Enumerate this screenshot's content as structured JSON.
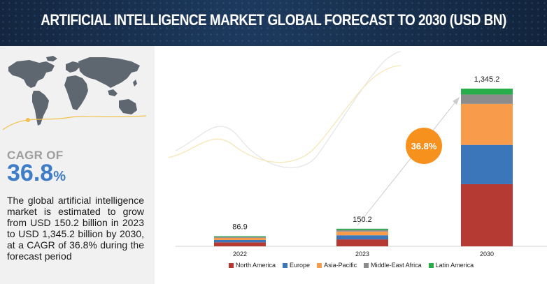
{
  "header": {
    "title": "ARTIFICIAL INTELLIGENCE MARKET GLOBAL FORECAST TO 2030 (USD BN)"
  },
  "sidebar": {
    "cagr_label": "CAGR OF",
    "cagr_value": "36.8",
    "cagr_pct": "%",
    "description": "The global artificial intelligence market is estimated to grow from USD 150.2 billion in 2023 to USD 1,345.2 billion by 2030, at a CAGR of 36.8% during the forecast period"
  },
  "cagr_bubble": "36.8%",
  "colors": {
    "North America": "#b53a33",
    "Europe": "#3b75ba",
    "Asia-Pacific": "#f89b4b",
    "Middle-East Africa": "#8c8c8c",
    "Latin America": "#27ae4a"
  },
  "chart_data": {
    "type": "bar",
    "stacked": true,
    "categories": [
      "2022",
      "2023",
      "2030"
    ],
    "totals": [
      "86.9",
      "150.2",
      "1,345.2"
    ],
    "series": [
      {
        "name": "North America",
        "values": [
          34,
          59,
          530
        ]
      },
      {
        "name": "Europe",
        "values": [
          20,
          35,
          335
        ]
      },
      {
        "name": "Asia-Pacific",
        "values": [
          18,
          32,
          350
        ]
      },
      {
        "name": "Middle-East Africa",
        "values": [
          9,
          14,
          80
        ]
      },
      {
        "name": "Latin America",
        "values": [
          5.9,
          10.2,
          50.2
        ]
      }
    ],
    "ylim": [
      0,
      1345.2
    ],
    "legend_position": "bottom",
    "grid": false
  }
}
